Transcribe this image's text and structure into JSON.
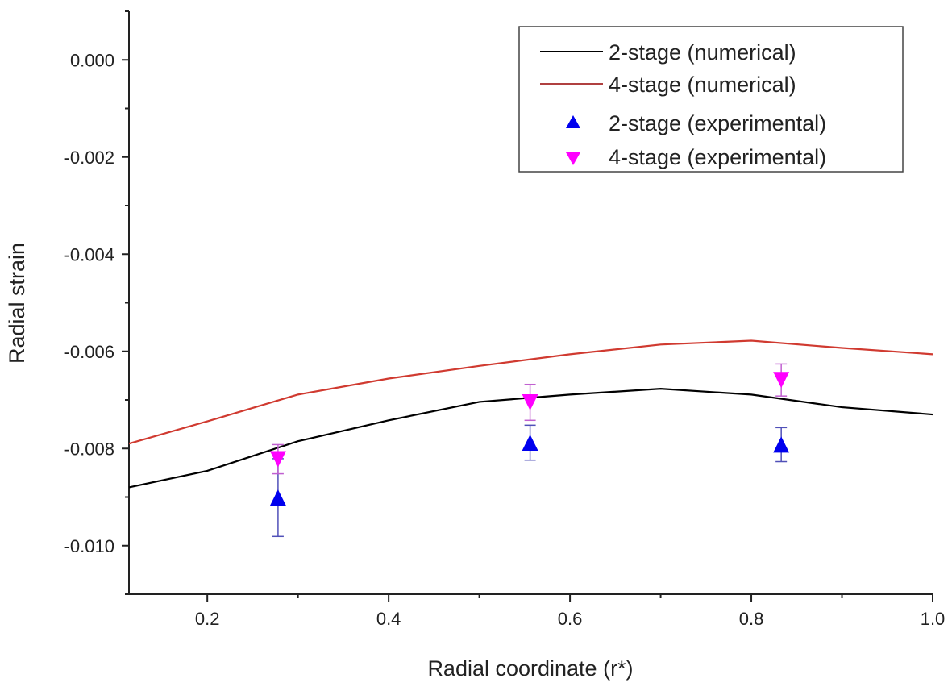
{
  "chart_data": {
    "type": "line",
    "title": "",
    "xlabel": "Radial coordinate (r*)",
    "ylabel": "Radial strain",
    "xlim": [
      0.1136,
      1.0
    ],
    "ylim": [
      -0.011,
      0.001
    ],
    "grid": false,
    "legend_position": "top-right",
    "x_ticks": [
      0.2,
      0.4,
      0.6,
      0.8,
      1.0
    ],
    "x_tick_labels": [
      "0.2",
      "0.4",
      "0.6",
      "0.8",
      "1.0"
    ],
    "y_ticks": [
      0.0,
      -0.002,
      -0.004,
      -0.006,
      -0.008,
      -0.01
    ],
    "y_tick_labels": [
      "0.000",
      "-0.002",
      "-0.004",
      "-0.006",
      "-0.008",
      "-0.010"
    ],
    "series": [
      {
        "name": "2-stage (numerical)",
        "kind": "line",
        "color": "#000000",
        "x": [
          0.1136,
          0.2,
          0.3,
          0.4,
          0.5,
          0.6,
          0.7,
          0.8,
          0.9,
          1.0
        ],
        "y": [
          -0.0088,
          -0.00846,
          -0.00785,
          -0.00742,
          -0.00704,
          -0.00689,
          -0.00677,
          -0.00689,
          -0.00715,
          -0.0073
        ]
      },
      {
        "name": "4-stage (numerical)",
        "kind": "line",
        "color": "#d03a30",
        "x": [
          0.1136,
          0.2,
          0.3,
          0.4,
          0.5,
          0.6,
          0.7,
          0.8,
          0.9,
          1.0
        ],
        "y": [
          -0.0079,
          -0.00744,
          -0.00689,
          -0.00656,
          -0.0063,
          -0.00606,
          -0.00586,
          -0.00578,
          -0.00593,
          -0.00606
        ]
      },
      {
        "name": "2-stage (experimental)",
        "kind": "scatter",
        "marker": "triangle-up",
        "color": "#0000ee",
        "error_color": "#5050b8",
        "x": [
          0.278,
          0.556,
          0.833
        ],
        "y": [
          -0.00901,
          -0.00788,
          -0.00792
        ],
        "yerr": [
          0.0008,
          0.00036,
          0.00035
        ]
      },
      {
        "name": "4-stage (experimental)",
        "kind": "scatter",
        "marker": "triangle-down",
        "color": "#ff00ff",
        "error_color": "#c060d0",
        "x": [
          0.278,
          0.556,
          0.833
        ],
        "y": [
          -0.00822,
          -0.00705,
          -0.00659
        ],
        "yerr": [
          0.0003,
          0.00037,
          0.00033
        ]
      }
    ]
  }
}
